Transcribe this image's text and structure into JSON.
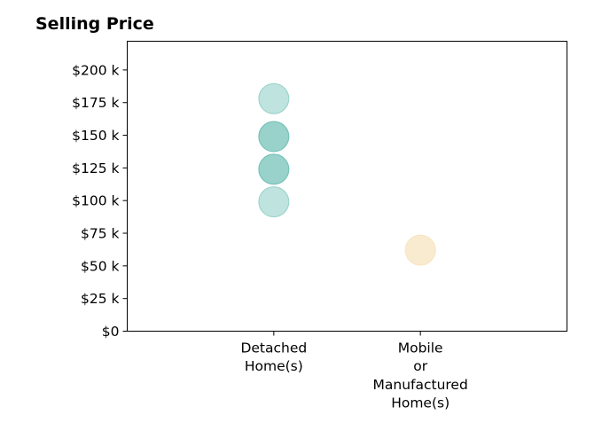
{
  "chart_data": {
    "type": "scatter",
    "title": "Selling Price",
    "xlabel": "",
    "ylabel": "",
    "categories": [
      [
        "Detached",
        "Home(s)"
      ],
      [
        "Mobile",
        "or",
        "Manufactured",
        "Home(s)"
      ]
    ],
    "x_range": [
      0,
      3
    ],
    "ylim": [
      0,
      222000
    ],
    "y_ticks": [
      0,
      25000,
      50000,
      75000,
      100000,
      125000,
      150000,
      175000,
      200000
    ],
    "y_tick_labels": [
      "$0",
      "$25 k",
      "$50 k",
      "$75 k",
      "$100 k",
      "$125 k",
      "$150 k",
      "$175 k",
      "$200 k"
    ],
    "grid": false,
    "points": [
      {
        "category": 0,
        "value": 99000,
        "color": "#5fb8ad",
        "opacity": 0.4
      },
      {
        "category": 0,
        "value": 124000,
        "color": "#5fb8ad",
        "opacity": 0.4
      },
      {
        "category": 0,
        "value": 124000,
        "color": "#5fb8ad",
        "opacity": 0.4
      },
      {
        "category": 0,
        "value": 149000,
        "color": "#5fb8ad",
        "opacity": 0.4
      },
      {
        "category": 0,
        "value": 149000,
        "color": "#5fb8ad",
        "opacity": 0.4
      },
      {
        "category": 0,
        "value": 178000,
        "color": "#5fb8ad",
        "opacity": 0.4
      },
      {
        "category": 1,
        "value": 62000,
        "color": "#f5ddb0",
        "opacity": 0.6
      }
    ]
  }
}
